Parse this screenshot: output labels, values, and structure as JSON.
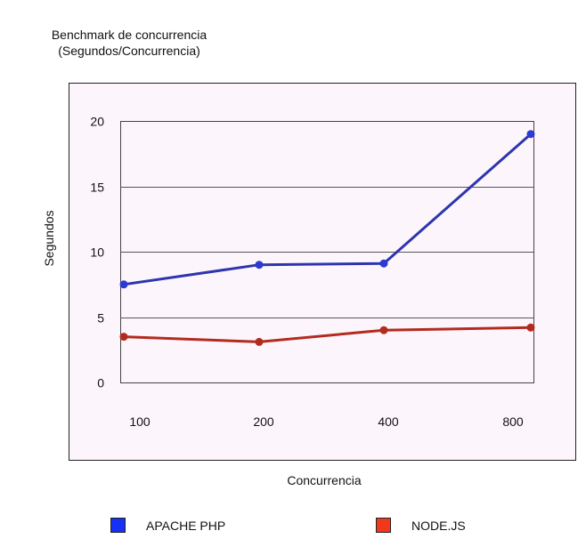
{
  "chart_data": {
    "type": "line",
    "title": [
      "Benchmark de concurrencia",
      "(Segundos/Concurrencia)"
    ],
    "xlabel": "Concurrencia",
    "ylabel": "Segundos",
    "categories": [
      "100",
      "200",
      "400",
      "800"
    ],
    "ylim": [
      0,
      20
    ],
    "yticks": [
      0,
      5,
      10,
      15,
      20
    ],
    "grid": true,
    "legend_position": "bottom",
    "plot_background": "#fdf5fc",
    "series": [
      {
        "name": "APACHE PHP",
        "color": "#2e35ad",
        "marker_color": "#2b3ad0",
        "swatch": "#1631f5",
        "values": [
          7.5,
          9.0,
          9.1,
          19.0
        ]
      },
      {
        "name": "NODE.JS",
        "color": "#b32b1f",
        "marker_color": "#b32b1f",
        "swatch": "#f2381c",
        "values": [
          3.5,
          3.1,
          4.0,
          4.2
        ]
      }
    ]
  }
}
